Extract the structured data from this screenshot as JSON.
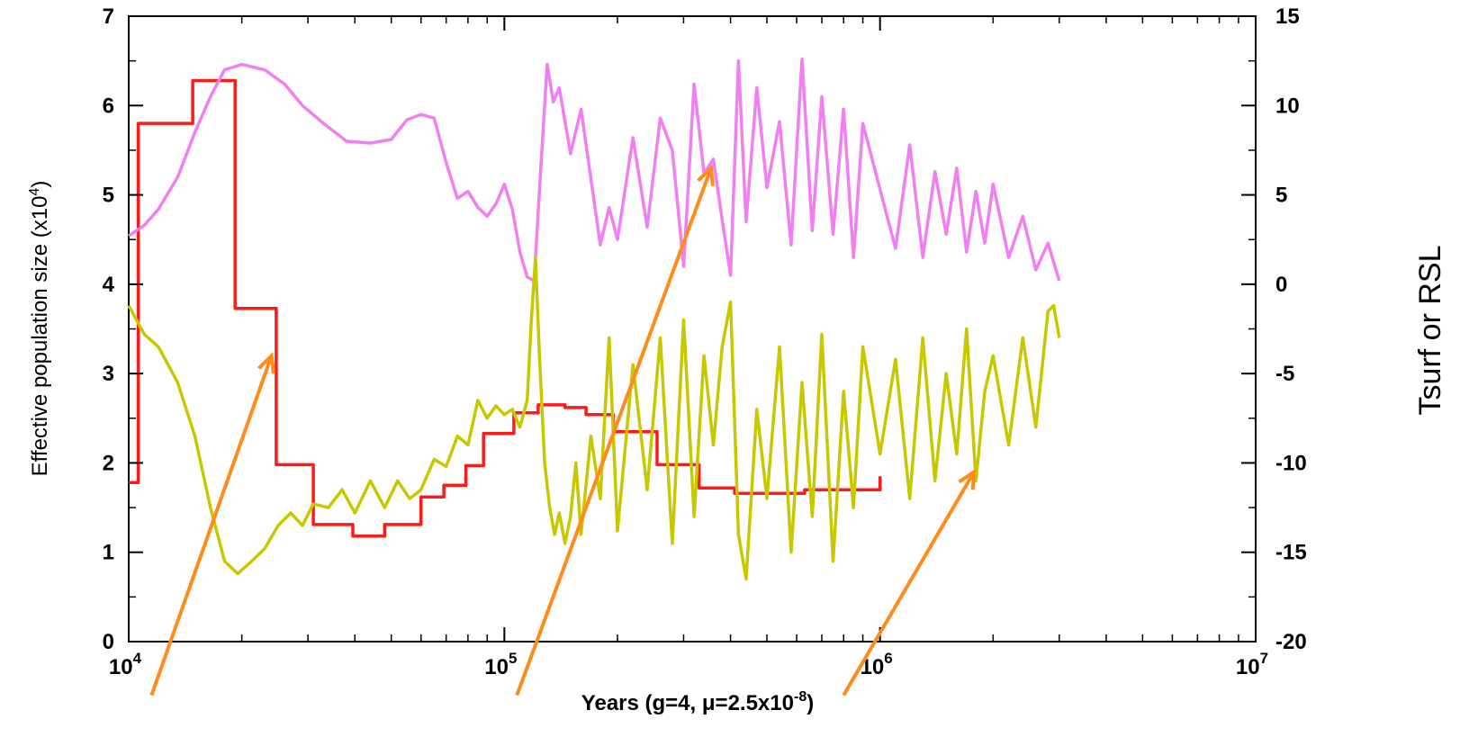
{
  "chart_data": {
    "type": "line",
    "title": "",
    "xlabel": "Years (g=4, μ=2.5x10",
    "xlabel_exp": "-8",
    "xlabel_close": ")",
    "ylabel_left": "Effective population size (x10",
    "ylabel_left_exp": "4",
    "ylabel_left_close": ")",
    "ylabel_right": "Tsurf or RSL",
    "xscale": "log",
    "xlim": [
      10000,
      10000000
    ],
    "ylim_left": [
      0,
      7
    ],
    "ylim_right": [
      -20,
      15
    ],
    "grid": false,
    "legend": "none",
    "x_ticks": [
      {
        "base": "10",
        "exp": "4",
        "value": 10000
      },
      {
        "base": "10",
        "exp": "5",
        "value": 100000
      },
      {
        "base": "10",
        "exp": "6",
        "value": 1000000
      },
      {
        "base": "10",
        "exp": "7",
        "value": 10000000
      }
    ],
    "y_ticks_left": [
      "0",
      "1",
      "2",
      "3",
      "4",
      "5",
      "6",
      "7"
    ],
    "y_ticks_right": [
      "-20",
      "-15",
      "-10",
      "-5",
      "0",
      "5",
      "10",
      "15"
    ],
    "series": [
      {
        "axis": "left",
        "color": "#ff1a1a",
        "step": true,
        "x": [
          10000,
          10600,
          14800,
          19200,
          24700,
          31000,
          39500,
          48000,
          60000,
          69000,
          79000,
          88000,
          106000,
          123000,
          145000,
          165000,
          195000,
          255000,
          330000,
          410000,
          630000,
          1000000
        ],
        "y": [
          1.78,
          5.8,
          6.28,
          3.73,
          1.98,
          1.31,
          1.18,
          1.31,
          1.62,
          1.75,
          1.97,
          2.33,
          2.56,
          2.65,
          2.62,
          2.54,
          2.35,
          1.98,
          1.72,
          1.66,
          1.7,
          1.85
        ]
      },
      {
        "axis": "right",
        "color": "#f27ff2",
        "x": [
          10000,
          11000,
          12000,
          13500,
          15000,
          16500,
          18000,
          20000,
          23000,
          26000,
          29000,
          33000,
          38000,
          44000,
          50000,
          55000,
          60000,
          65000,
          70000,
          75000,
          80000,
          85000,
          90000,
          95000,
          100000,
          105000,
          110000,
          115000,
          120000,
          125000,
          130000,
          135000,
          140000,
          150000,
          160000,
          170000,
          180000,
          190000,
          200000,
          220000,
          240000,
          260000,
          280000,
          300000,
          320000,
          340000,
          360000,
          380000,
          400000,
          420000,
          440000,
          470000,
          500000,
          540000,
          580000,
          620000,
          660000,
          700000,
          750000,
          800000,
          850000,
          900000,
          1000000,
          1100000,
          1200000,
          1300000,
          1400000,
          1500000,
          1600000,
          1700000,
          1800000,
          1900000,
          2000000,
          2200000,
          2400000,
          2600000,
          2800000,
          3000000
        ],
        "y": [
          2.7,
          3.3,
          4.2,
          6.0,
          8.5,
          10.5,
          12.0,
          12.3,
          12.0,
          11.2,
          10.0,
          9.0,
          8.0,
          7.9,
          8.1,
          9.2,
          9.5,
          9.3,
          6.8,
          4.8,
          5.2,
          4.3,
          3.8,
          4.5,
          5.6,
          4.2,
          1.8,
          0.4,
          0.2,
          6.5,
          12.3,
          10.2,
          11.0,
          7.3,
          9.8,
          5.9,
          2.2,
          4.3,
          2.5,
          8.2,
          3.2,
          9.3,
          7.5,
          1.0,
          11.2,
          6.2,
          7.0,
          3.6,
          0.5,
          12.5,
          3.5,
          11.0,
          5.4,
          9.1,
          2.2,
          12.6,
          3.0,
          10.5,
          2.8,
          9.8,
          1.5,
          9.0,
          5.3,
          2.0,
          7.8,
          1.5,
          6.3,
          2.8,
          6.5,
          1.8,
          5.2,
          2.3,
          5.6,
          1.5,
          3.8,
          0.8,
          2.3,
          0.2
        ]
      },
      {
        "axis": "right",
        "color": "#c8c800",
        "x": [
          10000,
          11000,
          12000,
          13500,
          15000,
          16500,
          18000,
          19500,
          21000,
          23000,
          25000,
          27000,
          29000,
          31000,
          34000,
          37000,
          40000,
          44000,
          48000,
          52000,
          56000,
          60000,
          65000,
          70000,
          75000,
          80000,
          85000,
          90000,
          95000,
          100000,
          105000,
          110000,
          115000,
          118000,
          121000,
          124000,
          128000,
          132000,
          136000,
          140000,
          145000,
          150000,
          155000,
          160000,
          170000,
          180000,
          190000,
          200000,
          220000,
          240000,
          260000,
          280000,
          300000,
          320000,
          340000,
          360000,
          380000,
          400000,
          420000,
          440000,
          470000,
          500000,
          540000,
          580000,
          620000,
          660000,
          700000,
          750000,
          800000,
          850000,
          900000,
          1000000,
          1100000,
          1200000,
          1300000,
          1400000,
          1500000,
          1600000,
          1700000,
          1800000,
          1900000,
          2000000,
          2200000,
          2400000,
          2600000,
          2800000,
          2900000,
          3000000
        ],
        "y": [
          -1.2,
          -2.8,
          -3.5,
          -5.5,
          -8.5,
          -12.5,
          -15.5,
          -16.2,
          -15.6,
          -14.8,
          -13.5,
          -12.8,
          -13.5,
          -12.3,
          -12.5,
          -11.5,
          -12.8,
          -11.0,
          -12.5,
          -11.0,
          -12.0,
          -11.5,
          -9.8,
          -10.2,
          -8.5,
          -9.0,
          -6.5,
          -7.5,
          -6.8,
          -7.3,
          -7.0,
          -8.0,
          -6.5,
          -2.0,
          1.5,
          -4.0,
          -10.0,
          -12.5,
          -14.0,
          -12.8,
          -14.5,
          -13.0,
          -10.0,
          -14.0,
          -8.5,
          -12.0,
          -3.0,
          -13.8,
          -4.5,
          -11.5,
          -3.0,
          -14.5,
          -2.0,
          -13.0,
          -4.0,
          -9.0,
          -3.5,
          -1.0,
          -14.0,
          -16.5,
          -7.0,
          -12.0,
          -3.5,
          -15.0,
          -5.5,
          -13.0,
          -2.8,
          -15.5,
          -6.0,
          -12.5,
          -3.5,
          -9.5,
          -4.2,
          -12.0,
          -3.0,
          -11.0,
          -5.0,
          -9.5,
          -2.5,
          -11.0,
          -6.0,
          -4.0,
          -9.0,
          -3.0,
          -8.0,
          -1.5,
          -1.2,
          -3.0
        ]
      }
    ],
    "arrows": [
      {
        "color": "#ff8c1a",
        "from": [
          11500,
          -23
        ],
        "to": [
          24000,
          -4
        ]
      },
      {
        "color": "#ff8c1a",
        "from": [
          108000,
          -23
        ],
        "to": [
          355000,
          6.5
        ]
      },
      {
        "color": "#ff8c1a",
        "from": [
          800000,
          -23
        ],
        "to": [
          1780000,
          -10.5
        ]
      }
    ]
  }
}
